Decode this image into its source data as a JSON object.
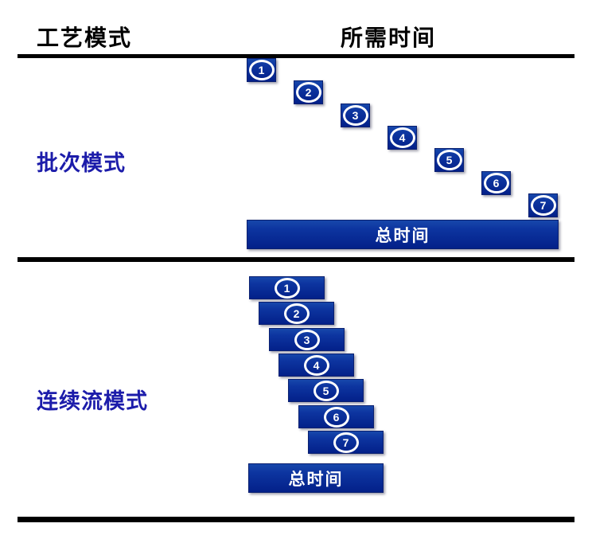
{
  "header": {
    "process_mode": "工艺模式",
    "required_time": "所需时间"
  },
  "sections": {
    "batch": {
      "label": "批次模式",
      "steps": [
        "1",
        "2",
        "3",
        "4",
        "5",
        "6",
        "7"
      ],
      "total_label": "总时间"
    },
    "continuous": {
      "label": "连续流模式",
      "steps": [
        "1",
        "2",
        "3",
        "4",
        "5",
        "6",
        "7"
      ],
      "total_label": "总时间"
    }
  },
  "colors": {
    "box_blue_top": "#1747ab",
    "box_blue_bottom": "#032089",
    "box_border": "#0a2070",
    "section_label_blue": "#1c1caa",
    "divider_black": "#000000",
    "bar_text_white": "#ffffff"
  }
}
